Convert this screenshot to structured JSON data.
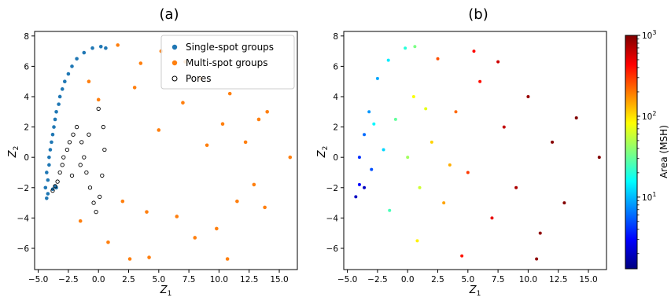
{
  "panels": [
    {
      "label": "(a)"
    },
    {
      "label": "(b)"
    }
  ],
  "colors": {
    "single": "#1f77b4",
    "multi": "#ff7f0e",
    "pores_edge": "#000000"
  },
  "chart_data": [
    {
      "type": "scatter",
      "title": "(a)",
      "xlabel": "Z1",
      "ylabel": "Z2",
      "xlim": [
        -5.3,
        16.5
      ],
      "ylim": [
        -7.4,
        8.3
      ],
      "xticks": [
        -5.0,
        -2.5,
        0.0,
        2.5,
        5.0,
        7.5,
        10.0,
        12.5,
        15.0
      ],
      "xtick_labels": [
        "−5.0",
        "−2.5",
        "0.0",
        "2.5",
        "5.0",
        "7.5",
        "10.0",
        "12.5",
        "15.0"
      ],
      "yticks": [
        -6,
        -4,
        -2,
        0,
        2,
        4,
        6,
        8
      ],
      "ytick_labels": [
        "−6",
        "−4",
        "−2",
        "0",
        "2",
        "4",
        "6",
        "8"
      ],
      "legend_position": "top-right",
      "series": [
        {
          "name": "Single-spot groups",
          "color": "#1f77b4",
          "marker": "filled-circle",
          "shape": "narrow arc from (-4.2,-2.7) up the left edge to (0.6,7.3)",
          "points": [
            [
              -4.3,
              -2.7
            ],
            [
              -4.2,
              -2.4
            ],
            [
              -4.4,
              -2.0
            ],
            [
              -4.2,
              -1.5
            ],
            [
              -4.3,
              -1.0
            ],
            [
              -4.1,
              -0.5
            ],
            [
              -4.1,
              0.0
            ],
            [
              -4.0,
              0.5
            ],
            [
              -3.9,
              1.0
            ],
            [
              -3.8,
              1.5
            ],
            [
              -3.7,
              2.0
            ],
            [
              -3.6,
              2.5
            ],
            [
              -3.5,
              3.0
            ],
            [
              -3.3,
              3.5
            ],
            [
              -3.2,
              4.0
            ],
            [
              -3.0,
              4.5
            ],
            [
              -2.8,
              5.0
            ],
            [
              -2.5,
              5.5
            ],
            [
              -2.2,
              6.0
            ],
            [
              -1.8,
              6.5
            ],
            [
              -1.2,
              6.9
            ],
            [
              -0.5,
              7.2
            ],
            [
              0.2,
              7.3
            ],
            [
              0.6,
              7.2
            ],
            [
              -3.8,
              -2.1
            ],
            [
              -3.6,
              -1.9
            ],
            [
              -3.5,
              -2.0
            ]
          ]
        },
        {
          "name": "Multi-spot groups",
          "color": "#ff7f0e",
          "marker": "filled-circle",
          "shape": "broad cloud centered near (1,0), x from -4 to 16, y from -6.8 to 7.4",
          "points": [
            [
              15.9,
              0.0
            ],
            [
              14.0,
              3.0
            ],
            [
              13.8,
              -3.3
            ],
            [
              13.3,
              2.5
            ],
            [
              12.9,
              -1.8
            ],
            [
              12.2,
              1.0
            ],
            [
              11.5,
              -2.9
            ],
            [
              10.9,
              4.2
            ],
            [
              10.7,
              -6.7
            ],
            [
              10.3,
              2.2
            ],
            [
              9.8,
              -4.7
            ],
            [
              9.0,
              0.8
            ],
            [
              8.5,
              5.2
            ],
            [
              8.0,
              -5.3
            ],
            [
              7.2,
              6.3
            ],
            [
              7.0,
              3.6
            ],
            [
              6.5,
              -3.9
            ],
            [
              5.2,
              7.0
            ],
            [
              4.2,
              -6.6
            ],
            [
              3.5,
              6.2
            ],
            [
              2.6,
              -6.7
            ],
            [
              1.6,
              7.4
            ],
            [
              0.8,
              -5.6
            ],
            [
              -0.8,
              5.0
            ],
            [
              -1.5,
              -4.2
            ],
            [
              0.0,
              3.8
            ],
            [
              2.0,
              -2.9
            ],
            [
              3.0,
              4.6
            ],
            [
              5.0,
              1.8
            ],
            [
              4.0,
              -3.6
            ]
          ]
        },
        {
          "name": "Pores",
          "color": "none",
          "edgecolor": "#000000",
          "marker": "open-circle",
          "shape": "cluster from (-3.8,-2.1) rising to about (0.5,3.2)",
          "points": [
            [
              -3.8,
              -2.2
            ],
            [
              -3.6,
              -1.9
            ],
            [
              -3.4,
              -1.6
            ],
            [
              -3.2,
              -1.0
            ],
            [
              -3.0,
              -0.5
            ],
            [
              -2.9,
              0.0
            ],
            [
              -2.6,
              0.5
            ],
            [
              -2.4,
              1.0
            ],
            [
              -2.1,
              1.5
            ],
            [
              -1.8,
              2.0
            ],
            [
              -1.4,
              1.0
            ],
            [
              -1.2,
              0.0
            ],
            [
              -1.0,
              -1.0
            ],
            [
              -0.7,
              -2.0
            ],
            [
              -0.4,
              -3.0
            ],
            [
              -0.2,
              -3.6
            ],
            [
              0.1,
              -2.6
            ],
            [
              0.3,
              -1.2
            ],
            [
              0.5,
              0.5
            ],
            [
              0.4,
              2.0
            ],
            [
              0.0,
              3.2
            ],
            [
              -1.5,
              -0.5
            ],
            [
              -2.2,
              -1.2
            ],
            [
              -0.8,
              1.5
            ]
          ]
        }
      ]
    },
    {
      "type": "scatter",
      "title": "(b)",
      "xlabel": "Z1",
      "ylabel": "Z2",
      "xlim": [
        -5.3,
        16.5
      ],
      "ylim": [
        -7.4,
        8.3
      ],
      "xticks": [
        -5.0,
        -2.5,
        0.0,
        2.5,
        5.0,
        7.5,
        10.0,
        12.5,
        15.0
      ],
      "xtick_labels": [
        "−5.0",
        "−2.5",
        "0.0",
        "2.5",
        "5.0",
        "7.5",
        "10.0",
        "12.5",
        "15.0"
      ],
      "yticks": [
        -6,
        -4,
        -2,
        0,
        2,
        4,
        6,
        8
      ],
      "ytick_labels": [
        "−6",
        "−4",
        "−2",
        "0",
        "2",
        "4",
        "6",
        "8"
      ],
      "color_encoding": "Area (MSH), log scale, jet colormap",
      "colorbar": {
        "label": "Area (MSH)",
        "scale": "log",
        "min": 1.3,
        "max": 1000,
        "colormap": "jet",
        "tick_labels": [
          {
            "base": "10",
            "exp": "3",
            "value": 1000
          },
          {
            "base": "10",
            "exp": "2",
            "value": 100
          },
          {
            "base": "10",
            "exp": "1",
            "value": 10
          }
        ]
      },
      "points": [
        [
          -4.3,
          -2.6,
          2
        ],
        [
          -4.0,
          -1.8,
          3
        ],
        [
          -3.6,
          -2.0,
          2
        ],
        [
          -4.0,
          0.0,
          4
        ],
        [
          -3.6,
          1.5,
          6
        ],
        [
          -3.2,
          3.0,
          8
        ],
        [
          -2.5,
          5.2,
          9
        ],
        [
          -1.6,
          6.4,
          14
        ],
        [
          -0.2,
          7.2,
          20
        ],
        [
          0.6,
          7.3,
          35
        ],
        [
          -3.0,
          -0.8,
          5
        ],
        [
          -2.0,
          0.5,
          12
        ],
        [
          -1.0,
          2.5,
          30
        ],
        [
          0.0,
          0.0,
          45
        ],
        [
          1.0,
          -2.0,
          60
        ],
        [
          0.5,
          4.0,
          80
        ],
        [
          2.0,
          1.0,
          110
        ],
        [
          3.0,
          -3.0,
          150
        ],
        [
          4.0,
          3.0,
          220
        ],
        [
          5.0,
          -1.0,
          300
        ],
        [
          6.0,
          5.0,
          400
        ],
        [
          7.0,
          -4.0,
          500
        ],
        [
          8.0,
          2.0,
          650
        ],
        [
          9.0,
          -2.0,
          750
        ],
        [
          10.0,
          4.0,
          850
        ],
        [
          11.0,
          -5.0,
          900
        ],
        [
          12.0,
          1.0,
          950
        ],
        [
          13.0,
          -3.0,
          980
        ],
        [
          14.0,
          2.6,
          1000
        ],
        [
          15.9,
          0.0,
          1000
        ],
        [
          2.5,
          6.5,
          260
        ],
        [
          5.5,
          7.0,
          420
        ],
        [
          -1.5,
          -3.5,
          25
        ],
        [
          0.8,
          -5.5,
          90
        ],
        [
          4.5,
          -6.5,
          380
        ],
        [
          10.7,
          -6.7,
          900
        ],
        [
          7.5,
          6.3,
          600
        ],
        [
          -2.8,
          2.2,
          15
        ],
        [
          1.5,
          3.2,
          70
        ],
        [
          3.5,
          -0.5,
          140
        ]
      ]
    }
  ]
}
